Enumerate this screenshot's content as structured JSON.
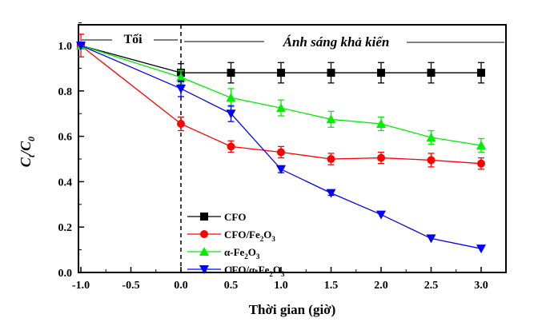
{
  "chart_data": {
    "type": "line",
    "xlabel": "Thời gian (giờ)",
    "ylabel": {
      "main": "C",
      "sub1": "t",
      "sep": "/C",
      "sub2": "0"
    },
    "xlim": [
      -1.0,
      3.25
    ],
    "ylim": [
      0.0,
      1.1
    ],
    "xticks": [
      "-1.0",
      "-0.5",
      "0.0",
      "0.5",
      "1.0",
      "1.5",
      "2.0",
      "2.5",
      "3.0"
    ],
    "yticks": [
      "0.0",
      "0.2",
      "0.4",
      "0.6",
      "0.8",
      "1.0"
    ],
    "grid": false,
    "legend_position": "bottom-center",
    "annotations": {
      "dark": "Tối",
      "light": "Ánh sáng khả kiến",
      "divider_x": 0.0
    },
    "x": [
      -1.0,
      0.0,
      0.5,
      1.0,
      1.5,
      2.0,
      2.5,
      3.0
    ],
    "series": [
      {
        "name": "CFO",
        "legend": [
          "CFO"
        ],
        "color": "#000000",
        "marker": "square",
        "values": [
          1.0,
          0.88,
          0.88,
          0.88,
          0.88,
          0.88,
          0.88,
          0.88
        ],
        "errors": [
          0.0,
          0.04,
          0.045,
          0.045,
          0.045,
          0.045,
          0.045,
          0.045
        ]
      },
      {
        "name": "CFO/Fe2O3",
        "legend": [
          "CFO/Fe",
          "2",
          "O",
          "3"
        ],
        "color": "#ff0000",
        "marker": "circle",
        "values": [
          1.0,
          0.655,
          0.555,
          0.53,
          0.5,
          0.505,
          0.495,
          0.48
        ],
        "errors": [
          0.05,
          0.03,
          0.025,
          0.025,
          0.025,
          0.025,
          0.03,
          0.025
        ]
      },
      {
        "name": "α-Fe2O3",
        "legend": [
          "α-Fe",
          "2",
          "O",
          "3"
        ],
        "color": "#00ee00",
        "marker": "triangle-up",
        "values": [
          1.0,
          0.86,
          0.77,
          0.725,
          0.675,
          0.655,
          0.595,
          0.56
        ],
        "errors": [
          0.0,
          0.03,
          0.04,
          0.035,
          0.035,
          0.03,
          0.03,
          0.03
        ]
      },
      {
        "name": "CFO/α-Fe2O3",
        "legend": [
          "CFO/α-Fe",
          "2",
          "O",
          "3"
        ],
        "color": "#0000ff",
        "marker": "triangle-down",
        "values": [
          1.0,
          0.81,
          0.7,
          0.455,
          0.35,
          0.255,
          0.15,
          0.105
        ],
        "errors": [
          0.0,
          0.035,
          0.035,
          0.015,
          0.01,
          0.0,
          0.0,
          0.0
        ]
      }
    ]
  }
}
